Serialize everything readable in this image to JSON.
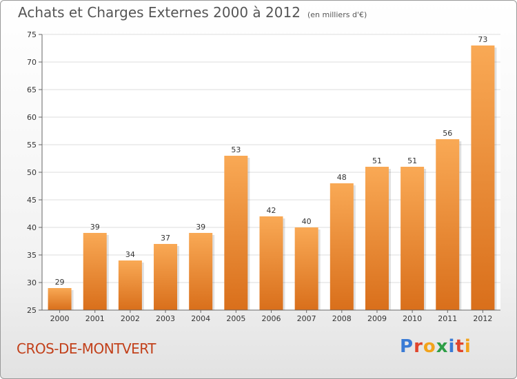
{
  "header": {
    "title": "Achats et Charges Externes 2000 à 2012",
    "unit": "(en milliers d'€)"
  },
  "footer": {
    "commune": "CROS-DE-MONTVERT",
    "brand": "Proxiti"
  },
  "colors": {
    "bar_light": "#f9a955",
    "bar_dark": "#d96f1b",
    "commune_text": "#c2401a"
  },
  "chart_data": {
    "type": "bar",
    "title": "Achats et Charges Externes 2000 à 2012",
    "subtitle": "(en milliers d'€)",
    "xlabel": "",
    "ylabel": "",
    "categories": [
      "2000",
      "2001",
      "2002",
      "2003",
      "2004",
      "2005",
      "2006",
      "2007",
      "2008",
      "2009",
      "2010",
      "2011",
      "2012"
    ],
    "values": [
      29,
      39,
      34,
      37,
      39,
      53,
      42,
      40,
      48,
      51,
      51,
      56,
      73
    ],
    "ylim": [
      25,
      75
    ],
    "yticks": [
      25,
      30,
      35,
      40,
      45,
      50,
      55,
      60,
      65,
      70,
      75
    ],
    "grid": true,
    "legend": "none"
  }
}
